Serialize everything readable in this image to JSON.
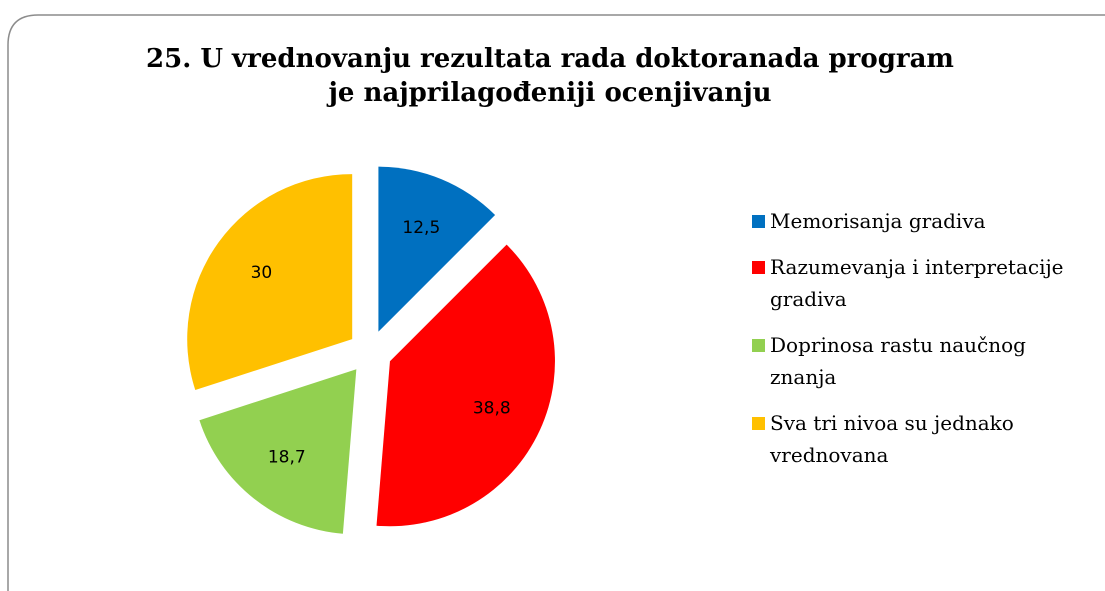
{
  "chart_data": {
    "type": "pie",
    "title": "25. U vrednovanju rezultata rada doktoranada program je najprilagođeniji ocenjivanju",
    "categories": [
      "Memorisanja gradiva",
      "Razumevanja i interpretacije gradiva",
      "Doprinosa rastu naučnog znanja",
      "Sva tri nivoa su jednako vrednovana"
    ],
    "values": [
      12.5,
      38.8,
      18.7,
      30
    ],
    "value_labels": [
      "12,5",
      "38,8",
      "18,7",
      "30"
    ],
    "colors": [
      "#0070c0",
      "#ff0000",
      "#92d050",
      "#ffc000"
    ],
    "legend": "right"
  }
}
